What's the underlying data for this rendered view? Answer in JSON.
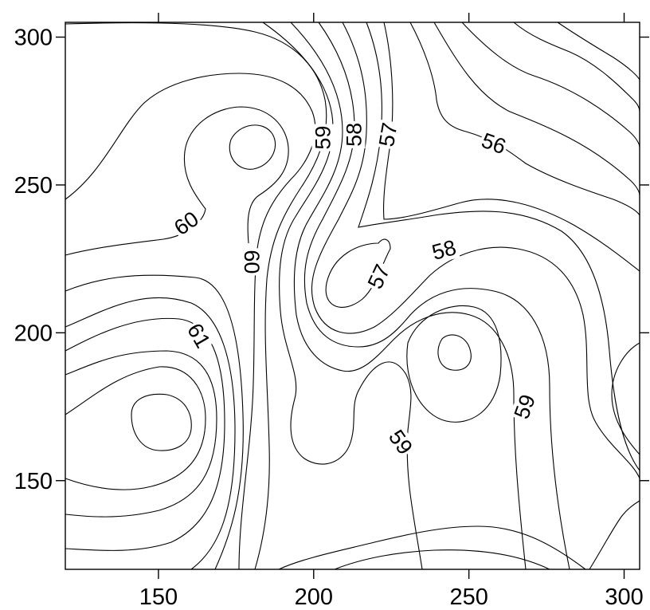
{
  "chart_data": {
    "type": "contour",
    "title": "",
    "xlabel": "",
    "ylabel": "",
    "xlim": [
      120,
      305
    ],
    "ylim": [
      120,
      305
    ],
    "x_ticks": [
      150,
      200,
      250,
      300
    ],
    "y_ticks": [
      150,
      200,
      250,
      300
    ],
    "grid": false,
    "line_color": "#000000",
    "levels": [
      56,
      57,
      58,
      59,
      60,
      61
    ],
    "labels": [
      {
        "text": "56",
        "x": 258,
        "y": 264,
        "rotation": 20
      },
      {
        "text": "57",
        "x": 224,
        "y": 267,
        "rotation": -80
      },
      {
        "text": "58",
        "x": 213,
        "y": 267,
        "rotation": -90
      },
      {
        "text": "59",
        "x": 203,
        "y": 266,
        "rotation": -90
      },
      {
        "text": "60",
        "x": 159,
        "y": 237,
        "rotation": -35
      },
      {
        "text": "60",
        "x": 180,
        "y": 224,
        "rotation": 90
      },
      {
        "text": "57",
        "x": 221,
        "y": 219,
        "rotation": -65
      },
      {
        "text": "58",
        "x": 242,
        "y": 228,
        "rotation": -15
      },
      {
        "text": "61",
        "x": 163,
        "y": 199,
        "rotation": 60
      },
      {
        "text": "59",
        "x": 228,
        "y": 163,
        "rotation": 55
      },
      {
        "text": "59",
        "x": 268,
        "y": 175,
        "rotation": -70
      }
    ]
  }
}
